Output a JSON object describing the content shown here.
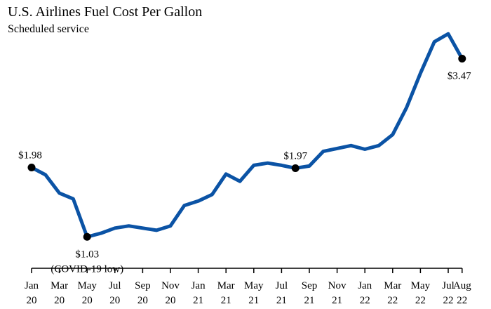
{
  "title": "U.S. Airlines Fuel Cost Per Gallon",
  "subtitle": "Scheduled service",
  "colors": {
    "line": "#0b53a5",
    "marker": "#000000",
    "axis": "#000000"
  },
  "chart_data": {
    "type": "line",
    "title": "U.S. Airlines Fuel Cost Per Gallon",
    "subtitle": "Scheduled service",
    "xlabel": "",
    "ylabel": "",
    "grid": false,
    "ylim": [
      0.6,
      3.85
    ],
    "x": [
      "Jan 20",
      "Feb 20",
      "Mar 20",
      "Apr 20",
      "May 20",
      "Jun 20",
      "Jul 20",
      "Aug 20",
      "Sep 20",
      "Oct 20",
      "Nov 20",
      "Dec 20",
      "Jan 21",
      "Feb 21",
      "Mar 21",
      "Apr 21",
      "May 21",
      "Jun 21",
      "Jul 21",
      "Aug 21",
      "Sep 21",
      "Oct 21",
      "Nov 21",
      "Dec 21",
      "Jan 22",
      "Feb 22",
      "Mar 22",
      "Apr 22",
      "May 22",
      "Jun 22",
      "Jul 22",
      "Aug 22"
    ],
    "series": [
      {
        "values": [
          1.98,
          1.88,
          1.63,
          1.55,
          1.03,
          1.08,
          1.15,
          1.18,
          1.15,
          1.12,
          1.18,
          1.46,
          1.52,
          1.61,
          1.89,
          1.79,
          2.01,
          2.04,
          2.01,
          1.97,
          2.0,
          2.2,
          2.24,
          2.28,
          2.23,
          2.28,
          2.43,
          2.8,
          3.27,
          3.7,
          3.81,
          3.47
        ]
      }
    ],
    "tick_labels": [
      {
        "month": "Jan",
        "year": "20"
      },
      {
        "month": "Mar",
        "year": "20"
      },
      {
        "month": "May",
        "year": "20"
      },
      {
        "month": "Jul",
        "year": "20"
      },
      {
        "month": "Sep",
        "year": "20"
      },
      {
        "month": "Nov",
        "year": "20"
      },
      {
        "month": "Jan",
        "year": "21"
      },
      {
        "month": "Mar",
        "year": "21"
      },
      {
        "month": "May",
        "year": "21"
      },
      {
        "month": "Jul",
        "year": "21"
      },
      {
        "month": "Sep",
        "year": "21"
      },
      {
        "month": "Nov",
        "year": "21"
      },
      {
        "month": "Jan",
        "year": "22"
      },
      {
        "month": "Mar",
        "year": "22"
      },
      {
        "month": "May",
        "year": "22"
      },
      {
        "month": "Jul",
        "year": "22"
      },
      {
        "month": "Aug",
        "year": "22"
      }
    ],
    "tick_categories": [
      "Jan 20",
      "Mar 20",
      "May 20",
      "Jul 20",
      "Sep 20",
      "Nov 20",
      "Jan 21",
      "Mar 21",
      "May 21",
      "Jul 21",
      "Sep 21",
      "Nov 21",
      "Jan 22",
      "Mar 22",
      "May 22",
      "Jul 22",
      "Aug 22"
    ],
    "annotations": [
      {
        "x": "Jan 20",
        "value": 1.98,
        "label": "$1.98",
        "note": ""
      },
      {
        "x": "May 20",
        "value": 1.03,
        "label": "$1.03",
        "note": "(COVID-19 low)"
      },
      {
        "x": "Aug 21",
        "value": 1.97,
        "label": "$1.97",
        "note": ""
      },
      {
        "x": "Aug 22",
        "value": 3.47,
        "label": "$3.47",
        "note": ""
      }
    ]
  }
}
